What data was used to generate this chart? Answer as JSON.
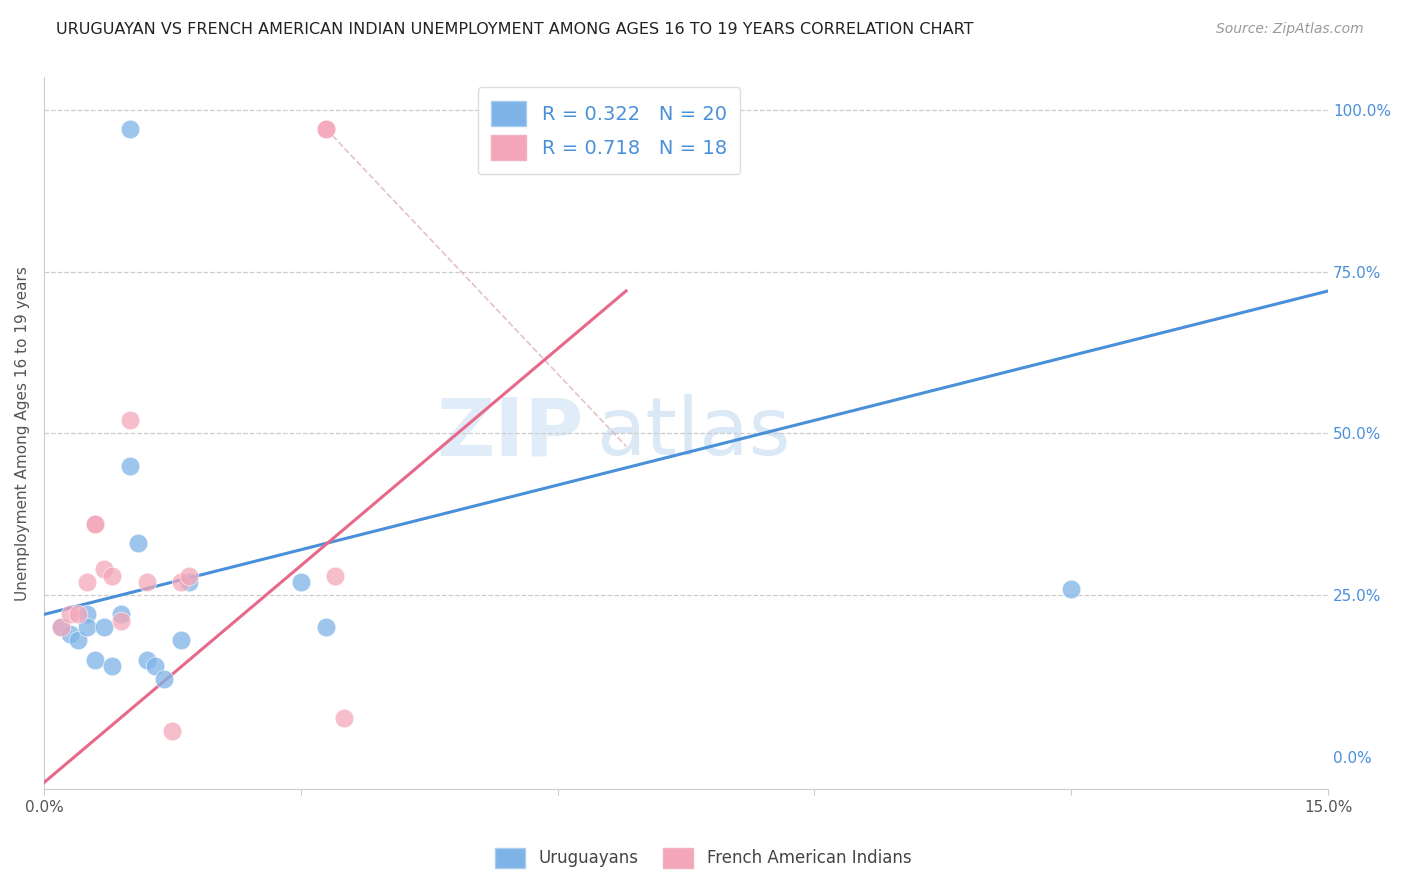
{
  "title": "URUGUAYAN VS FRENCH AMERICAN INDIAN UNEMPLOYMENT AMONG AGES 16 TO 19 YEARS CORRELATION CHART",
  "source": "Source: ZipAtlas.com",
  "ylabel": "Unemployment Among Ages 16 to 19 years",
  "xlim": [
    0.0,
    0.15
  ],
  "ylim": [
    -0.05,
    1.05
  ],
  "x_ticks": [
    0.0,
    0.03,
    0.06,
    0.09,
    0.12,
    0.15
  ],
  "x_tick_labels": [
    "0.0%",
    "",
    "",
    "",
    "",
    "15.0%"
  ],
  "y_ticks_right": [
    0.0,
    0.25,
    0.5,
    0.75,
    1.0
  ],
  "y_tick_labels_right": [
    "0.0%",
    "25.0%",
    "50.0%",
    "75.0%",
    "100.0%"
  ],
  "uruguayan_color": "#7eb3e8",
  "french_color": "#f4a7b9",
  "uruguayan_line_color": "#4a90d9",
  "french_line_color": "#e8688a",
  "uruguayan_R": 0.322,
  "uruguayan_N": 20,
  "french_R": 0.718,
  "french_N": 18,
  "watermark_zip": "ZIP",
  "watermark_atlas": "atlas",
  "uruguayan_scatter_x": [
    0.002,
    0.003,
    0.004,
    0.005,
    0.005,
    0.006,
    0.007,
    0.008,
    0.009,
    0.01,
    0.01,
    0.011,
    0.012,
    0.013,
    0.014,
    0.016,
    0.017,
    0.03,
    0.033,
    0.12
  ],
  "uruguayan_scatter_y": [
    0.2,
    0.19,
    0.18,
    0.22,
    0.2,
    0.15,
    0.2,
    0.14,
    0.22,
    0.45,
    0.97,
    0.33,
    0.15,
    0.14,
    0.12,
    0.18,
    0.27,
    0.27,
    0.2,
    0.26
  ],
  "french_scatter_x": [
    0.002,
    0.003,
    0.004,
    0.005,
    0.006,
    0.006,
    0.007,
    0.008,
    0.009,
    0.01,
    0.012,
    0.015,
    0.016,
    0.017,
    0.033,
    0.033,
    0.034,
    0.035
  ],
  "french_scatter_y": [
    0.2,
    0.22,
    0.22,
    0.27,
    0.36,
    0.36,
    0.29,
    0.28,
    0.21,
    0.52,
    0.27,
    0.04,
    0.27,
    0.28,
    0.97,
    0.97,
    0.28,
    0.06
  ],
  "blue_line_x": [
    0.0,
    0.15
  ],
  "blue_line_y": [
    0.22,
    0.72
  ],
  "pink_line_x": [
    0.0,
    0.068
  ],
  "pink_line_y": [
    -0.04,
    0.72
  ],
  "diag_line_x": [
    0.033,
    0.068
  ],
  "diag_line_y": [
    0.97,
    0.48
  ],
  "dot_size": 180,
  "legend_fontsize": 14,
  "tick_fontsize": 11,
  "title_fontsize": 11.5
}
